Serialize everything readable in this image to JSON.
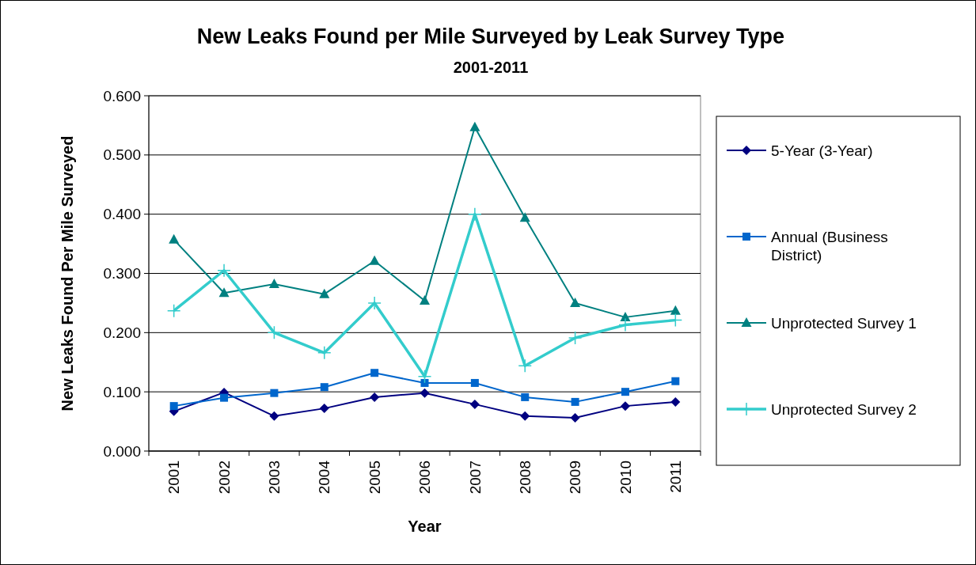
{
  "chart_data": {
    "type": "line",
    "title": "New Leaks Found per Mile Surveyed by Leak Survey Type",
    "subtitle": "2001-2011",
    "xlabel": "Year",
    "ylabel": "New Leaks Found Per Mile Surveyed",
    "categories": [
      "2001",
      "2002",
      "2003",
      "2004",
      "2005",
      "2006",
      "2007",
      "2008",
      "2009",
      "2010",
      "2011"
    ],
    "series": [
      {
        "name": "5-Year (3-Year)",
        "color": "#000080",
        "marker": "diamond",
        "values": [
          0.067,
          0.099,
          0.059,
          0.072,
          0.091,
          0.098,
          0.079,
          0.059,
          0.056,
          0.076,
          0.083
        ]
      },
      {
        "name": "Annual (Business District)",
        "color": "#0066cc",
        "marker": "square",
        "values": [
          0.076,
          0.09,
          0.098,
          0.108,
          0.132,
          0.115,
          0.115,
          0.091,
          0.083,
          0.1,
          0.118
        ]
      },
      {
        "name": "Unprotected Survey 1",
        "color": "#008080",
        "marker": "triangle",
        "values": [
          0.357,
          0.267,
          0.282,
          0.265,
          0.321,
          0.254,
          0.547,
          0.394,
          0.25,
          0.226,
          0.237
        ]
      },
      {
        "name": "Unprotected Survey 2",
        "color": "#33cccc",
        "marker": "cross",
        "values": [
          0.237,
          0.305,
          0.2,
          0.166,
          0.25,
          0.126,
          0.4,
          0.144,
          0.191,
          0.213,
          0.221
        ]
      }
    ],
    "ylim": [
      0,
      0.6
    ],
    "yticks": [
      {
        "value": 0,
        "label": "0.000"
      },
      {
        "value": 0.1,
        "label": "0.100"
      },
      {
        "value": 0.2,
        "label": "0.200"
      },
      {
        "value": 0.3,
        "label": "0.300"
      },
      {
        "value": 0.4,
        "label": "0.400"
      },
      {
        "value": 0.5,
        "label": "0.500"
      },
      {
        "value": 0.6,
        "label": "0.600"
      }
    ],
    "grid": "y",
    "legend": "right"
  }
}
